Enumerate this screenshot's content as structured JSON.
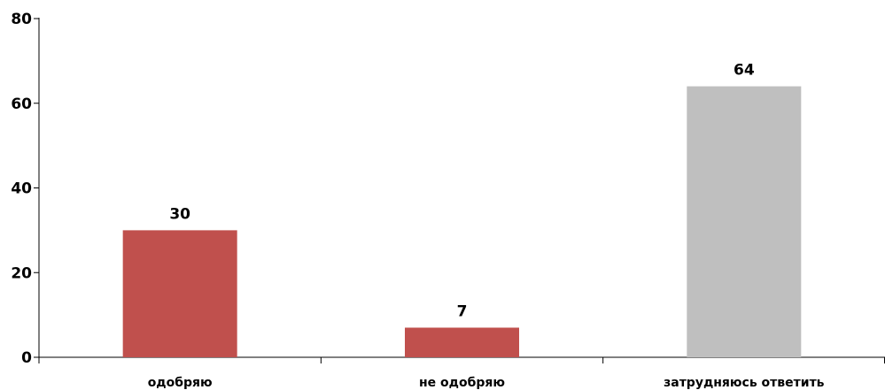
{
  "chart_data": {
    "type": "bar",
    "title": "",
    "xlabel": "",
    "ylabel": "",
    "categories": [
      "одобряю",
      "не одобряю",
      "затрудняюсь ответить"
    ],
    "values": [
      30,
      7,
      64
    ],
    "data_labels": [
      "30",
      "7",
      "64"
    ],
    "bar_colors": [
      "#c0504d",
      "#c0504d",
      "#bfbfbf"
    ],
    "ylim": [
      0,
      80
    ],
    "yticks": [
      0,
      20,
      40,
      60,
      80
    ],
    "ytick_labels": [
      "0",
      "20",
      "40",
      "60",
      "80"
    ],
    "grid": false,
    "legend": "none"
  }
}
